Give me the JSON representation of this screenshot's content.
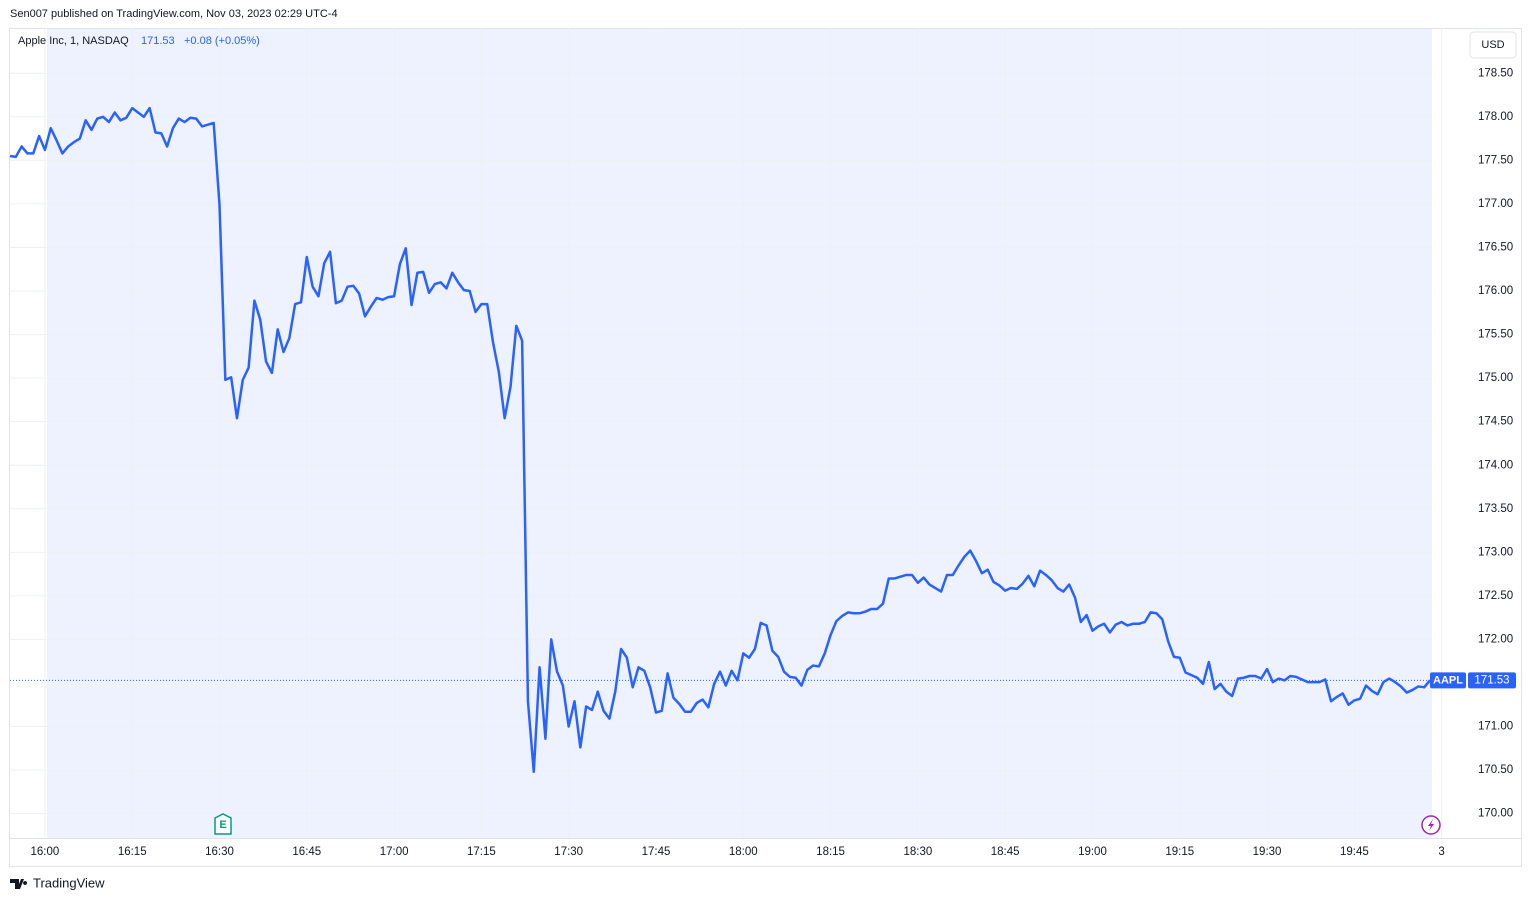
{
  "header": {
    "publisher": "Sen007 published on TradingView.com, Nov 03, 2023 02:29 UTC-4"
  },
  "footer": {
    "brand": "TradingView"
  },
  "chart_data": {
    "type": "line",
    "legend": {
      "last": "171.53",
      "change": "+0.08 (+0.05%)"
    },
    "currency": "USD",
    "price_badge": {
      "symbol": "AAPL",
      "value": 171.53,
      "label": "171.53"
    },
    "x": [
      "15:54",
      "15:55",
      "15:56",
      "15:57",
      "15:58",
      "15:59",
      "16:00",
      "16:01",
      "16:02",
      "16:03",
      "16:04",
      "16:05",
      "16:06",
      "16:07",
      "16:08",
      "16:09",
      "16:10",
      "16:11",
      "16:12",
      "16:13",
      "16:14",
      "16:15",
      "16:16",
      "16:17",
      "16:18",
      "16:19",
      "16:20",
      "16:21",
      "16:22",
      "16:23",
      "16:24",
      "16:25",
      "16:26",
      "16:27",
      "16:28",
      "16:29",
      "16:30",
      "16:31",
      "16:32",
      "16:33",
      "16:34",
      "16:35",
      "16:36",
      "16:37",
      "16:38",
      "16:39",
      "16:40",
      "16:41",
      "16:42",
      "16:43",
      "16:44",
      "16:45",
      "16:46",
      "16:47",
      "16:48",
      "16:49",
      "16:50",
      "16:51",
      "16:52",
      "16:53",
      "16:54",
      "16:55",
      "16:56",
      "16:57",
      "16:58",
      "16:59",
      "17:00",
      "17:01",
      "17:02",
      "17:03",
      "17:04",
      "17:05",
      "17:06",
      "17:07",
      "17:08",
      "17:09",
      "17:10",
      "17:11",
      "17:12",
      "17:13",
      "17:14",
      "17:15",
      "17:16",
      "17:17",
      "17:18",
      "17:19",
      "17:20",
      "17:21",
      "17:22",
      "17:23",
      "17:24",
      "17:25",
      "17:26",
      "17:27",
      "17:28",
      "17:29",
      "17:30",
      "17:31",
      "17:32",
      "17:33",
      "17:34",
      "17:35",
      "17:36",
      "17:37",
      "17:38",
      "17:39",
      "17:40",
      "17:41",
      "17:42",
      "17:43",
      "17:44",
      "17:45",
      "17:46",
      "17:47",
      "17:48",
      "17:49",
      "17:50",
      "17:51",
      "17:52",
      "17:53",
      "17:54",
      "17:55",
      "17:56",
      "17:57",
      "17:58",
      "17:59",
      "18:00",
      "18:01",
      "18:02",
      "18:03",
      "18:04",
      "18:05",
      "18:06",
      "18:07",
      "18:08",
      "18:09",
      "18:10",
      "18:11",
      "18:12",
      "18:13",
      "18:14",
      "18:15",
      "18:16",
      "18:17",
      "18:18",
      "18:19",
      "18:20",
      "18:21",
      "18:22",
      "18:23",
      "18:24",
      "18:25",
      "18:26",
      "18:27",
      "18:28",
      "18:29",
      "18:30",
      "18:31",
      "18:32",
      "18:33",
      "18:34",
      "18:35",
      "18:36",
      "18:37",
      "18:38",
      "18:39",
      "18:40",
      "18:41",
      "18:42",
      "18:43",
      "18:44",
      "18:45",
      "18:46",
      "18:47",
      "18:48",
      "18:49",
      "18:50",
      "18:51",
      "18:52",
      "18:53",
      "18:54",
      "18:55",
      "18:56",
      "18:57",
      "18:58",
      "18:59",
      "19:00",
      "19:01",
      "19:02",
      "19:03",
      "19:04",
      "19:05",
      "19:06",
      "19:07",
      "19:08",
      "19:09",
      "19:10",
      "19:11",
      "19:12",
      "19:13",
      "19:14",
      "19:15",
      "19:16",
      "19:17",
      "19:18",
      "19:19",
      "19:20",
      "19:21",
      "19:22",
      "19:23",
      "19:24",
      "19:25",
      "19:26",
      "19:27",
      "19:28",
      "19:29",
      "19:30",
      "19:31",
      "19:32",
      "19:33",
      "19:34",
      "19:35",
      "19:36",
      "19:37",
      "19:38",
      "19:39",
      "19:40",
      "19:41",
      "19:42",
      "19:43",
      "19:44",
      "19:45",
      "19:46",
      "19:47",
      "19:48",
      "19:49",
      "19:50",
      "19:51",
      "19:52",
      "19:53",
      "19:54",
      "19:55",
      "19:56",
      "19:57",
      "19:58"
    ],
    "series": [
      {
        "name": "Apple Inc, 1, NASDAQ",
        "color": "#2962ff",
        "values": [
          177.55,
          177.54,
          177.66,
          177.58,
          177.58,
          177.78,
          177.62,
          177.87,
          177.73,
          177.58,
          177.66,
          177.71,
          177.75,
          177.96,
          177.85,
          177.98,
          178.0,
          177.94,
          178.05,
          177.96,
          177.99,
          178.1,
          178.05,
          178.0,
          178.1,
          177.82,
          177.81,
          177.66,
          177.87,
          177.98,
          177.94,
          177.99,
          177.98,
          177.89,
          177.91,
          177.93,
          176.99,
          174.98,
          175.01,
          174.54,
          174.98,
          175.12,
          175.89,
          175.67,
          175.19,
          175.06,
          175.56,
          175.3,
          175.46,
          175.85,
          175.87,
          176.39,
          176.05,
          175.94,
          176.32,
          176.45,
          175.86,
          175.89,
          176.05,
          176.06,
          175.97,
          175.71,
          175.82,
          175.92,
          175.9,
          175.93,
          175.94,
          176.31,
          176.49,
          175.84,
          176.21,
          176.22,
          175.98,
          176.08,
          176.1,
          176.03,
          176.21,
          176.1,
          176.01,
          176.0,
          175.76,
          175.85,
          175.85,
          175.41,
          175.07,
          174.54,
          174.9,
          175.6,
          175.43,
          171.29,
          170.48,
          171.68,
          170.86,
          172.0,
          171.63,
          171.47,
          171.0,
          171.29,
          170.76,
          171.23,
          171.19,
          171.4,
          171.18,
          171.09,
          171.4,
          171.89,
          171.79,
          171.45,
          171.68,
          171.64,
          171.45,
          171.16,
          171.18,
          171.61,
          171.33,
          171.26,
          171.17,
          171.17,
          171.27,
          171.31,
          171.22,
          171.49,
          171.63,
          171.47,
          171.64,
          171.53,
          171.84,
          171.79,
          171.89,
          172.19,
          172.16,
          171.87,
          171.8,
          171.63,
          171.57,
          171.56,
          171.47,
          171.65,
          171.7,
          171.69,
          171.84,
          172.05,
          172.21,
          172.27,
          172.31,
          172.3,
          172.3,
          172.32,
          172.35,
          172.35,
          172.41,
          172.7,
          172.7,
          172.72,
          172.74,
          172.74,
          172.65,
          172.71,
          172.63,
          172.59,
          172.55,
          172.74,
          172.74,
          172.85,
          172.95,
          173.02,
          172.9,
          172.76,
          172.8,
          172.66,
          172.62,
          172.56,
          172.59,
          172.58,
          172.64,
          172.73,
          172.61,
          172.79,
          172.74,
          172.68,
          172.59,
          172.55,
          172.63,
          172.48,
          172.2,
          172.28,
          172.1,
          172.15,
          172.18,
          172.08,
          172.17,
          172.2,
          172.16,
          172.18,
          172.18,
          172.2,
          172.31,
          172.3,
          172.23,
          171.98,
          171.8,
          171.79,
          171.62,
          171.59,
          171.56,
          171.49,
          171.74,
          171.43,
          171.49,
          171.4,
          171.35,
          171.55,
          171.56,
          171.58,
          171.58,
          171.55,
          171.66,
          171.51,
          171.55,
          171.53,
          171.58,
          171.57,
          171.54,
          171.51,
          171.51,
          171.51,
          171.54,
          171.29,
          171.34,
          171.38,
          171.25,
          171.3,
          171.32,
          171.47,
          171.41,
          171.37,
          171.51,
          171.55,
          171.51,
          171.46,
          171.39,
          171.42,
          171.46,
          171.45,
          171.53
        ]
      }
    ],
    "ylim": [
      169.72,
      179.02
    ],
    "yticks": [
      {
        "value": 170,
        "label": "170.00"
      },
      {
        "value": 170.5,
        "label": "170.50"
      },
      {
        "value": 171,
        "label": "171.00"
      },
      {
        "value": 171.5,
        "label": "171.50"
      },
      {
        "value": 172,
        "label": "172.00"
      },
      {
        "value": 172.5,
        "label": "172.50"
      },
      {
        "value": 173,
        "label": "173.00"
      },
      {
        "value": 173.5,
        "label": "173.50"
      },
      {
        "value": 174,
        "label": "174.00"
      },
      {
        "value": 174.5,
        "label": "174.50"
      },
      {
        "value": 175,
        "label": "175.00"
      },
      {
        "value": 175.5,
        "label": "175.50"
      },
      {
        "value": 176,
        "label": "176.00"
      },
      {
        "value": 176.5,
        "label": "176.50"
      },
      {
        "value": 177,
        "label": "177.00"
      },
      {
        "value": 177.5,
        "label": "177.50"
      },
      {
        "value": 178,
        "label": "178.00"
      },
      {
        "value": 178.5,
        "label": "178.50"
      }
    ],
    "xticks": [
      "16:00",
      "16:15",
      "16:30",
      "16:45",
      "17:00",
      "17:15",
      "17:30",
      "17:45",
      "18:00",
      "18:15",
      "18:30",
      "18:45",
      "19:00",
      "19:15",
      "19:30",
      "19:45",
      {
        "value": "20:00",
        "label": "3"
      }
    ],
    "grid": true
  }
}
